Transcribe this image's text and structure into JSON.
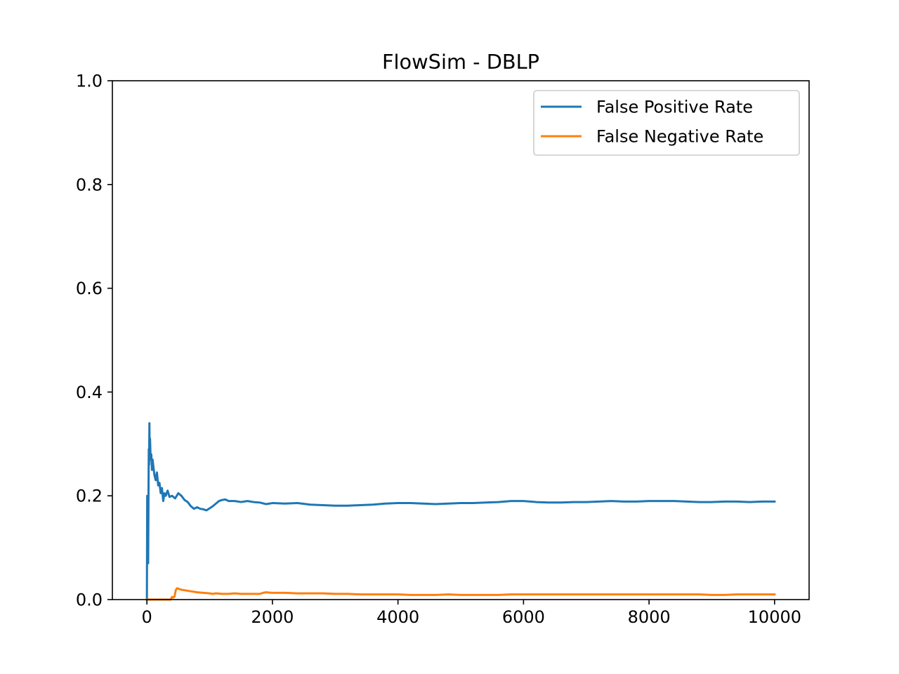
{
  "chart_data": {
    "type": "line",
    "title": "FlowSim - DBLP",
    "xlabel": "",
    "ylabel": "",
    "xlim": [
      -550,
      10550
    ],
    "ylim": [
      0.0,
      1.0
    ],
    "xticks": [
      0,
      2000,
      4000,
      6000,
      8000,
      10000
    ],
    "xtick_labels": [
      "0",
      "2000",
      "4000",
      "6000",
      "8000",
      "10000"
    ],
    "yticks": [
      0.0,
      0.2,
      0.4,
      0.6,
      0.8,
      1.0
    ],
    "ytick_labels": [
      "0.0",
      "0.2",
      "0.4",
      "0.6",
      "0.8",
      "1.0"
    ],
    "grid": false,
    "legend_position": "top-right",
    "series": [
      {
        "name": "False Positive Rate",
        "color": "#1f77b4",
        "points": [
          [
            0,
            0.0
          ],
          [
            5,
            0.2
          ],
          [
            10,
            0.2
          ],
          [
            15,
            0.09
          ],
          [
            20,
            0.07
          ],
          [
            25,
            0.19
          ],
          [
            30,
            0.29
          ],
          [
            35,
            0.26
          ],
          [
            40,
            0.34
          ],
          [
            45,
            0.27
          ],
          [
            50,
            0.31
          ],
          [
            60,
            0.27
          ],
          [
            70,
            0.28
          ],
          [
            80,
            0.25
          ],
          [
            90,
            0.27
          ],
          [
            100,
            0.26
          ],
          [
            120,
            0.24
          ],
          [
            140,
            0.23
          ],
          [
            160,
            0.245
          ],
          [
            180,
            0.22
          ],
          [
            200,
            0.225
          ],
          [
            220,
            0.205
          ],
          [
            240,
            0.215
          ],
          [
            260,
            0.19
          ],
          [
            280,
            0.205
          ],
          [
            300,
            0.2
          ],
          [
            330,
            0.21
          ],
          [
            360,
            0.198
          ],
          [
            400,
            0.2
          ],
          [
            450,
            0.195
          ],
          [
            500,
            0.205
          ],
          [
            550,
            0.2
          ],
          [
            600,
            0.192
          ],
          [
            650,
            0.188
          ],
          [
            700,
            0.18
          ],
          [
            750,
            0.175
          ],
          [
            800,
            0.178
          ],
          [
            850,
            0.175
          ],
          [
            900,
            0.174
          ],
          [
            950,
            0.172
          ],
          [
            1000,
            0.176
          ],
          [
            1050,
            0.18
          ],
          [
            1100,
            0.185
          ],
          [
            1150,
            0.19
          ],
          [
            1200,
            0.192
          ],
          [
            1250,
            0.193
          ],
          [
            1300,
            0.19
          ],
          [
            1400,
            0.19
          ],
          [
            1500,
            0.188
          ],
          [
            1600,
            0.19
          ],
          [
            1700,
            0.188
          ],
          [
            1800,
            0.187
          ],
          [
            1900,
            0.184
          ],
          [
            2000,
            0.186
          ],
          [
            2200,
            0.185
          ],
          [
            2400,
            0.186
          ],
          [
            2600,
            0.183
          ],
          [
            2800,
            0.182
          ],
          [
            3000,
            0.181
          ],
          [
            3200,
            0.181
          ],
          [
            3400,
            0.182
          ],
          [
            3600,
            0.183
          ],
          [
            3800,
            0.185
          ],
          [
            4000,
            0.186
          ],
          [
            4200,
            0.186
          ],
          [
            4400,
            0.185
          ],
          [
            4600,
            0.184
          ],
          [
            4800,
            0.185
          ],
          [
            5000,
            0.186
          ],
          [
            5200,
            0.186
          ],
          [
            5400,
            0.187
          ],
          [
            5600,
            0.188
          ],
          [
            5800,
            0.19
          ],
          [
            6000,
            0.19
          ],
          [
            6200,
            0.188
          ],
          [
            6400,
            0.187
          ],
          [
            6600,
            0.187
          ],
          [
            6800,
            0.188
          ],
          [
            7000,
            0.188
          ],
          [
            7200,
            0.189
          ],
          [
            7400,
            0.19
          ],
          [
            7600,
            0.189
          ],
          [
            7800,
            0.189
          ],
          [
            8000,
            0.19
          ],
          [
            8200,
            0.19
          ],
          [
            8400,
            0.19
          ],
          [
            8600,
            0.189
          ],
          [
            8800,
            0.188
          ],
          [
            9000,
            0.188
          ],
          [
            9200,
            0.189
          ],
          [
            9400,
            0.189
          ],
          [
            9600,
            0.188
          ],
          [
            9800,
            0.189
          ],
          [
            10000,
            0.189
          ]
        ]
      },
      {
        "name": "False Negative Rate",
        "color": "#ff7f0e",
        "points": [
          [
            0,
            0.0
          ],
          [
            380,
            0.0
          ],
          [
            400,
            0.005
          ],
          [
            420,
            0.004
          ],
          [
            440,
            0.006
          ],
          [
            460,
            0.018
          ],
          [
            480,
            0.022
          ],
          [
            500,
            0.021
          ],
          [
            550,
            0.019
          ],
          [
            600,
            0.018
          ],
          [
            700,
            0.016
          ],
          [
            800,
            0.014
          ],
          [
            900,
            0.013
          ],
          [
            1000,
            0.012
          ],
          [
            1050,
            0.011
          ],
          [
            1100,
            0.012
          ],
          [
            1200,
            0.011
          ],
          [
            1300,
            0.011
          ],
          [
            1400,
            0.012
          ],
          [
            1500,
            0.011
          ],
          [
            1600,
            0.011
          ],
          [
            1700,
            0.011
          ],
          [
            1800,
            0.011
          ],
          [
            1850,
            0.013
          ],
          [
            1900,
            0.014
          ],
          [
            2000,
            0.013
          ],
          [
            2200,
            0.013
          ],
          [
            2400,
            0.012
          ],
          [
            2600,
            0.012
          ],
          [
            2800,
            0.012
          ],
          [
            3000,
            0.011
          ],
          [
            3200,
            0.011
          ],
          [
            3400,
            0.01
          ],
          [
            3600,
            0.01
          ],
          [
            3800,
            0.01
          ],
          [
            4000,
            0.01
          ],
          [
            4200,
            0.009
          ],
          [
            4400,
            0.009
          ],
          [
            4600,
            0.009
          ],
          [
            4800,
            0.01
          ],
          [
            5000,
            0.009
          ],
          [
            5200,
            0.009
          ],
          [
            5400,
            0.009
          ],
          [
            5600,
            0.009
          ],
          [
            5800,
            0.01
          ],
          [
            6000,
            0.01
          ],
          [
            6200,
            0.01
          ],
          [
            6400,
            0.01
          ],
          [
            6600,
            0.01
          ],
          [
            6800,
            0.01
          ],
          [
            7000,
            0.01
          ],
          [
            7200,
            0.01
          ],
          [
            7400,
            0.01
          ],
          [
            7600,
            0.01
          ],
          [
            7800,
            0.01
          ],
          [
            8000,
            0.01
          ],
          [
            8200,
            0.01
          ],
          [
            8400,
            0.01
          ],
          [
            8600,
            0.01
          ],
          [
            8800,
            0.01
          ],
          [
            9000,
            0.009
          ],
          [
            9200,
            0.009
          ],
          [
            9400,
            0.01
          ],
          [
            9600,
            0.01
          ],
          [
            9800,
            0.01
          ],
          [
            10000,
            0.01
          ]
        ]
      }
    ]
  }
}
